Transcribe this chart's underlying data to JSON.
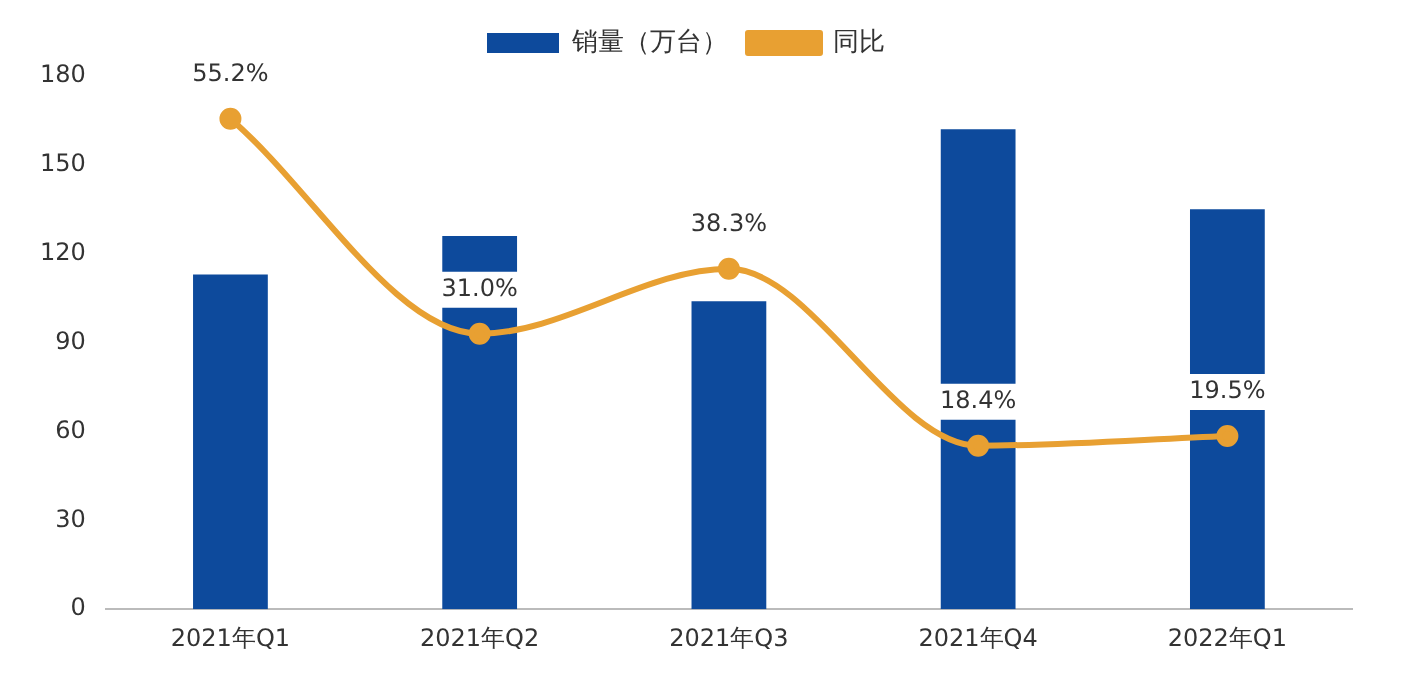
{
  "chart_data": {
    "type": "bar",
    "categories": [
      "2021年Q1",
      "2021年Q2",
      "2021年Q3",
      "2021年Q4",
      "2022年Q1"
    ],
    "series": [
      {
        "name": "销量（万台）",
        "color": "#0d4a9c",
        "values": [
          113,
          126,
          104,
          162,
          135
        ]
      },
      {
        "name": "同比",
        "type": "line",
        "axis": "y2",
        "color": "#e8a032",
        "values": [
          55.2,
          31.0,
          38.3,
          18.4,
          19.5
        ],
        "value_labels": [
          "55.2%",
          "31.0%",
          "38.3%",
          "18.4%",
          "19.5%"
        ]
      }
    ],
    "ylim": [
      0,
      180
    ],
    "yticks": [
      0,
      30,
      60,
      90,
      120,
      150,
      180
    ],
    "grid": false,
    "legend": "top",
    "marker": "circle"
  }
}
